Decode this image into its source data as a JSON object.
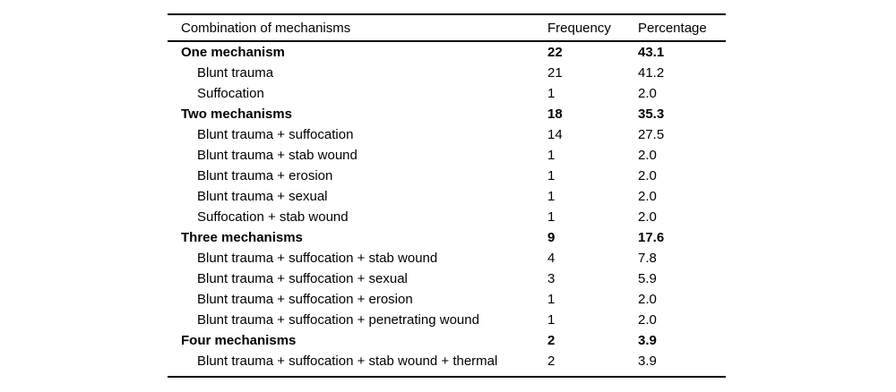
{
  "table": {
    "columns": [
      "Combination of mechanisms",
      "Frequency",
      "Percentage"
    ],
    "rows": [
      {
        "label": "One mechanism",
        "frequency": "22",
        "percentage": "43.1",
        "bold": true,
        "indent": false
      },
      {
        "label": "Blunt trauma",
        "frequency": "21",
        "percentage": "41.2",
        "bold": false,
        "indent": true
      },
      {
        "label": "Suffocation",
        "frequency": "1",
        "percentage": "2.0",
        "bold": false,
        "indent": true
      },
      {
        "label": "Two mechanisms",
        "frequency": "18",
        "percentage": "35.3",
        "bold": true,
        "indent": false
      },
      {
        "label": "Blunt trauma + suffocation",
        "frequency": "14",
        "percentage": "27.5",
        "bold": false,
        "indent": true
      },
      {
        "label": "Blunt trauma + stab wound",
        "frequency": "1",
        "percentage": "2.0",
        "bold": false,
        "indent": true
      },
      {
        "label": "Blunt trauma + erosion",
        "frequency": "1",
        "percentage": "2.0",
        "bold": false,
        "indent": true
      },
      {
        "label": "Blunt trauma + sexual",
        "frequency": "1",
        "percentage": "2.0",
        "bold": false,
        "indent": true
      },
      {
        "label": "Suffocation + stab wound",
        "frequency": "1",
        "percentage": "2.0",
        "bold": false,
        "indent": true
      },
      {
        "label": "Three mechanisms",
        "frequency": "9",
        "percentage": "17.6",
        "bold": true,
        "indent": false
      },
      {
        "label": "Blunt trauma + suffocation + stab wound",
        "frequency": "4",
        "percentage": "7.8",
        "bold": false,
        "indent": true
      },
      {
        "label": "Blunt trauma + suffocation + sexual",
        "frequency": "3",
        "percentage": "5.9",
        "bold": false,
        "indent": true
      },
      {
        "label": "Blunt trauma + suffocation + erosion",
        "frequency": "1",
        "percentage": "2.0",
        "bold": false,
        "indent": true
      },
      {
        "label": "Blunt trauma + suffocation + penetrating wound",
        "frequency": "1",
        "percentage": "2.0",
        "bold": false,
        "indent": true
      },
      {
        "label": "Four mechanisms",
        "frequency": "2",
        "percentage": "3.9",
        "bold": true,
        "indent": false
      },
      {
        "label": "Blunt trauma + suffocation + stab wound + thermal",
        "frequency": "2",
        "percentage": "3.9",
        "bold": false,
        "indent": true
      }
    ]
  }
}
